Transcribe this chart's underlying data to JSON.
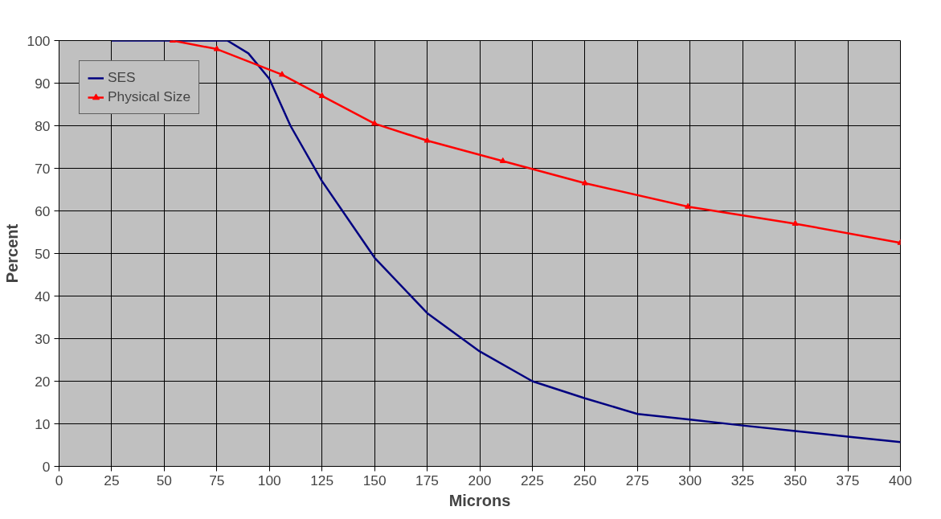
{
  "chart_data": {
    "type": "line",
    "xlabel": "Microns",
    "ylabel": "Percent",
    "xlim": [
      0,
      400
    ],
    "ylim": [
      0,
      100
    ],
    "xticks": [
      0,
      25,
      50,
      75,
      100,
      125,
      150,
      175,
      200,
      225,
      250,
      275,
      300,
      325,
      350,
      375,
      400
    ],
    "yticks": [
      0,
      10,
      20,
      30,
      40,
      50,
      60,
      70,
      80,
      90,
      100
    ],
    "grid": true,
    "legend": "top left",
    "series": [
      {
        "name": "SES",
        "color": "#000080",
        "marker": "none",
        "x": [
          25,
          50,
          75,
          80,
          90,
          100,
          110,
          125,
          150,
          175,
          200,
          225,
          250,
          275,
          300,
          325,
          350,
          375,
          400
        ],
        "values": [
          100,
          100,
          100,
          100,
          97,
          91,
          80,
          67,
          49,
          36,
          27,
          20,
          16,
          12.3,
          11,
          9.6,
          8.3,
          7,
          5.7
        ]
      },
      {
        "name": "Physical Size",
        "color": "#ff0000",
        "marker": "triangle",
        "x": [
          54,
          75,
          106,
          125,
          150,
          175,
          211,
          250,
          299,
          350,
          400
        ],
        "values": [
          100,
          98,
          92,
          87,
          80.5,
          76.5,
          71.7,
          66.5,
          61,
          57,
          52.5
        ]
      }
    ]
  }
}
